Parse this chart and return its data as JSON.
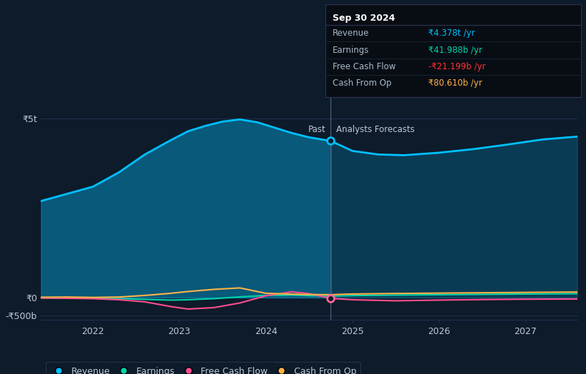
{
  "bg_color": "#0d1b2a",
  "plot_bg_color": "#0d1b2a",
  "xlim_left": 2021.4,
  "xlim_right": 2027.6,
  "ylim_bottom": -620,
  "ylim_top": 5600,
  "divider_x": 2024.75,
  "revenue_past_x": [
    2021.4,
    2021.7,
    2022.0,
    2022.3,
    2022.6,
    2022.9,
    2023.1,
    2023.3,
    2023.5,
    2023.7,
    2023.9,
    2024.1,
    2024.3,
    2024.5,
    2024.75
  ],
  "revenue_past_y": [
    2700,
    2900,
    3100,
    3500,
    4000,
    4400,
    4650,
    4800,
    4920,
    4980,
    4900,
    4750,
    4600,
    4480,
    4378
  ],
  "revenue_fore_x": [
    2024.75,
    2025.0,
    2025.3,
    2025.6,
    2026.0,
    2026.4,
    2026.8,
    2027.2,
    2027.6
  ],
  "revenue_fore_y": [
    4378,
    4100,
    4000,
    3980,
    4050,
    4150,
    4280,
    4420,
    4500
  ],
  "earnings_past_x": [
    2021.4,
    2021.7,
    2022.0,
    2022.3,
    2022.6,
    2022.9,
    2023.1,
    2023.4,
    2023.7,
    2024.0,
    2024.3,
    2024.5,
    2024.75
  ],
  "earnings_past_y": [
    -10,
    -15,
    -20,
    -30,
    -50,
    -70,
    -60,
    -30,
    20,
    60,
    70,
    55,
    42
  ],
  "earnings_fore_x": [
    2024.75,
    2025.0,
    2025.5,
    2026.0,
    2026.5,
    2027.0,
    2027.6
  ],
  "earnings_fore_y": [
    42,
    55,
    70,
    80,
    90,
    100,
    110
  ],
  "fcf_past_x": [
    2021.4,
    2021.7,
    2022.0,
    2022.3,
    2022.6,
    2022.9,
    2023.1,
    2023.4,
    2023.7,
    2024.0,
    2024.3,
    2024.5,
    2024.75
  ],
  "fcf_past_y": [
    -10,
    -20,
    -30,
    -60,
    -120,
    -250,
    -320,
    -280,
    -150,
    50,
    160,
    110,
    -21
  ],
  "fcf_fore_x": [
    2024.75,
    2025.0,
    2025.5,
    2026.0,
    2026.5,
    2027.0,
    2027.6
  ],
  "fcf_fore_y": [
    -21,
    -60,
    -90,
    -70,
    -55,
    -45,
    -40
  ],
  "cashop_past_x": [
    2021.4,
    2021.7,
    2022.0,
    2022.3,
    2022.6,
    2022.9,
    2023.1,
    2023.4,
    2023.7,
    2024.0,
    2024.3,
    2024.5,
    2024.75
  ],
  "cashop_past_y": [
    10,
    15,
    5,
    15,
    60,
    120,
    170,
    230,
    270,
    120,
    95,
    85,
    81
  ],
  "cashop_fore_x": [
    2024.75,
    2025.0,
    2025.5,
    2026.0,
    2026.5,
    2027.0,
    2027.6
  ],
  "cashop_fore_y": [
    81,
    100,
    115,
    125,
    135,
    145,
    155
  ],
  "revenue_color": "#00bfff",
  "earnings_color": "#00d4aa",
  "fcf_color": "#ff4d8d",
  "cashop_color": "#ffb347",
  "grid_color": "#1e3050",
  "text_color": "#c0c8d8",
  "divider_line_color": "#4a6080",
  "fill_past_alpha": 0.38,
  "fill_fore_alpha": 0.2,
  "xtick_positions": [
    2022,
    2023,
    2024,
    2025,
    2026,
    2027
  ],
  "ytick_positions": [
    -500,
    0,
    5000
  ],
  "ytick_labels": [
    "-₹500b",
    "₹0",
    "₹5t"
  ],
  "past_label": "Past",
  "forecast_label": "Analysts Forecasts",
  "revenue_label": "Revenue",
  "earnings_label": "Earnings",
  "fcf_label": "Free Cash Flow",
  "cashop_label": "Cash From Op",
  "tooltip_title": "Sep 30 2024",
  "tooltip_rows": [
    [
      "Revenue",
      "₹4.378t",
      " /yr",
      "#00bfff"
    ],
    [
      "Earnings",
      "₹41.988b",
      " /yr",
      "#00d4aa"
    ],
    [
      "Free Cash Flow",
      "-₹21.199b",
      " /yr",
      "#ff3333"
    ],
    [
      "Cash From Op",
      "₹80.610b",
      " /yr",
      "#ffb347"
    ]
  ]
}
